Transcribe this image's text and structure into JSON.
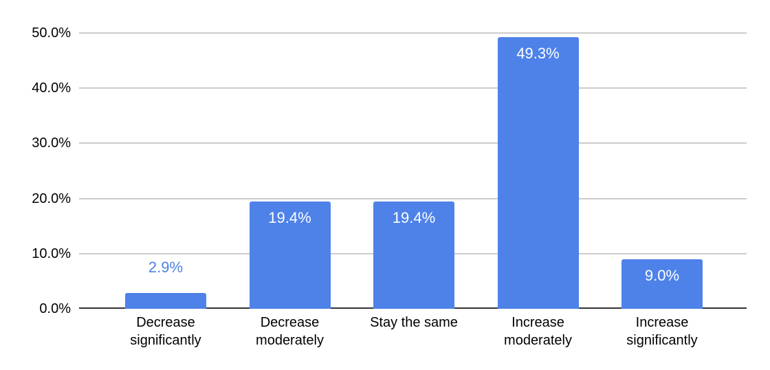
{
  "chart_data": {
    "type": "bar",
    "title": "",
    "categories": [
      "Decrease significantly",
      "Decrease moderately",
      "Stay the same",
      "Increase moderately",
      "Increase significantly"
    ],
    "values": [
      2.9,
      19.4,
      19.4,
      49.3,
      9.0
    ],
    "data_labels": [
      "2.9%",
      "19.4%",
      "19.4%",
      "49.3%",
      "9.0%"
    ],
    "data_label_placement": [
      "outside",
      "inside",
      "inside",
      "inside",
      "inside"
    ],
    "y_tick_labels": [
      "0.0%",
      "10.0%",
      "20.0%",
      "30.0%",
      "40.0%",
      "50.0%"
    ],
    "y_tick_values": [
      0,
      10,
      20,
      30,
      40,
      50
    ],
    "ylim": [
      0,
      50
    ],
    "xlabel": "",
    "ylabel": "",
    "grid": true,
    "legend_position": "none",
    "colors": {
      "bar": "#4e82e8",
      "inside_label": "#ffffff",
      "outside_label": "#4e82e8",
      "gridline": "#cccccc",
      "axis_line": "#333333",
      "tick_text": "#000000",
      "background": "#ffffff"
    }
  }
}
